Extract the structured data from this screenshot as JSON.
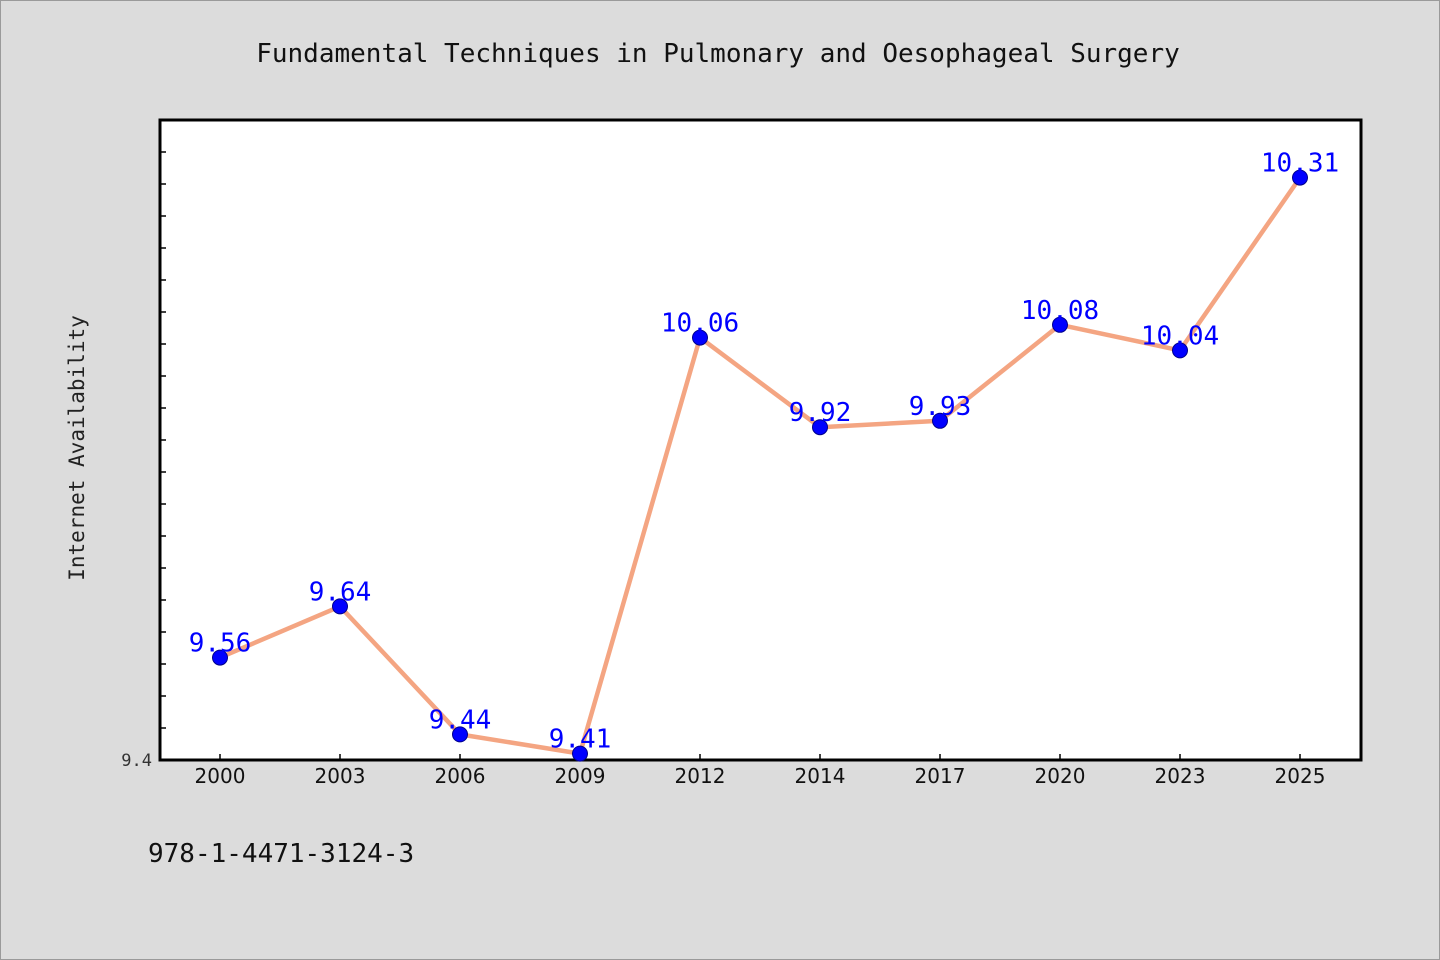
{
  "chart_data": {
    "type": "line",
    "title": "Fundamental Techniques in Pulmonary and Oesophageal Surgery",
    "xlabel": "",
    "ylabel": "Internet Availability",
    "categories": [
      "2000",
      "2003",
      "2006",
      "2009",
      "2012",
      "2014",
      "2017",
      "2020",
      "2023",
      "2025"
    ],
    "values": [
      9.56,
      9.64,
      9.44,
      9.41,
      10.06,
      9.92,
      9.93,
      10.08,
      10.04,
      10.31
    ],
    "data_labels": [
      "9.56",
      "9.64",
      "9.44",
      "9.41",
      "10.06",
      "9.92",
      "9.93",
      "10.08",
      "10.04",
      "10.31"
    ],
    "ylim": [
      9.4,
      10.4
    ],
    "yticks": [
      "9.4"
    ],
    "grid": false,
    "legend": "none",
    "line_color": "#f4a582",
    "marker_color": "#0000ff",
    "label_color": "#0000ff"
  },
  "footer": {
    "isbn": "978-1-4471-3124-3"
  }
}
